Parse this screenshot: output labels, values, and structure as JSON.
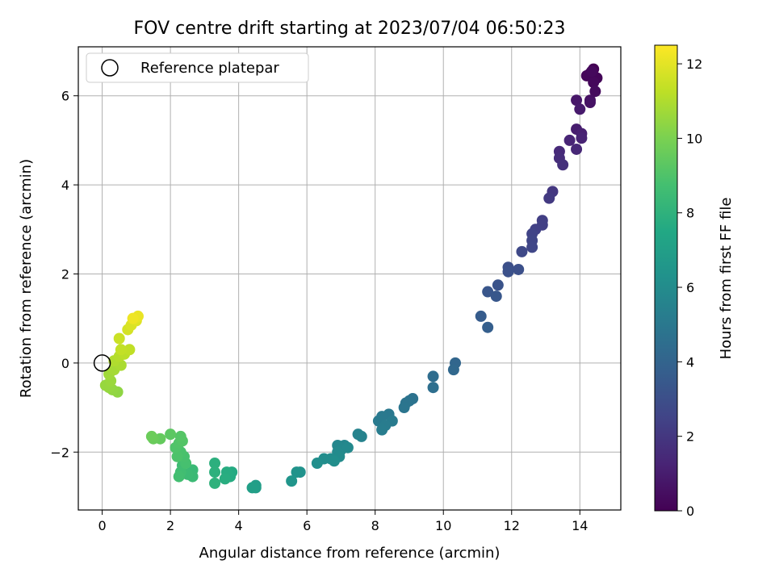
{
  "chart_data": {
    "type": "scatter",
    "title": "FOV centre drift starting at 2023/07/04 06:50:23",
    "xlabel": "Angular distance from reference (arcmin)",
    "ylabel": "Rotation from reference (arcmin)",
    "xlim": [
      -0.7,
      15.2
    ],
    "ylim": [
      -3.3,
      7.1
    ],
    "xticks": [
      0,
      2,
      4,
      6,
      8,
      10,
      12,
      14
    ],
    "yticks": [
      -2,
      0,
      2,
      4,
      6
    ],
    "grid": true,
    "legend": {
      "position": "top-left",
      "entries": [
        "Reference platepar"
      ]
    },
    "reference_point": {
      "x": 0,
      "y": 0
    },
    "colorbar": {
      "label": "Hours from first FF file",
      "range": [
        0,
        12.5
      ],
      "ticks": [
        0,
        2,
        4,
        6,
        8,
        10,
        12
      ],
      "colormap": "viridis"
    },
    "points": [
      {
        "x": 14.4,
        "y": 6.6,
        "c": 0.0
      },
      {
        "x": 14.3,
        "y": 6.5,
        "c": 0.1
      },
      {
        "x": 14.5,
        "y": 6.4,
        "c": 0.15
      },
      {
        "x": 14.2,
        "y": 6.45,
        "c": 0.2
      },
      {
        "x": 14.4,
        "y": 6.3,
        "c": 0.25
      },
      {
        "x": 14.35,
        "y": 6.55,
        "c": 0.3
      },
      {
        "x": 14.45,
        "y": 6.1,
        "c": 0.35
      },
      {
        "x": 14.3,
        "y": 5.9,
        "c": 0.5
      },
      {
        "x": 14.3,
        "y": 5.85,
        "c": 0.6
      },
      {
        "x": 13.9,
        "y": 5.9,
        "c": 0.8
      },
      {
        "x": 14.0,
        "y": 5.7,
        "c": 0.9
      },
      {
        "x": 13.9,
        "y": 5.25,
        "c": 1.0
      },
      {
        "x": 14.05,
        "y": 5.15,
        "c": 1.1
      },
      {
        "x": 14.05,
        "y": 5.05,
        "c": 1.2
      },
      {
        "x": 13.7,
        "y": 5.0,
        "c": 1.3
      },
      {
        "x": 13.9,
        "y": 4.8,
        "c": 1.4
      },
      {
        "x": 13.4,
        "y": 4.75,
        "c": 1.5
      },
      {
        "x": 13.4,
        "y": 4.6,
        "c": 1.6
      },
      {
        "x": 13.5,
        "y": 4.45,
        "c": 1.7
      },
      {
        "x": 13.2,
        "y": 3.85,
        "c": 2.0
      },
      {
        "x": 13.1,
        "y": 3.7,
        "c": 2.1
      },
      {
        "x": 12.9,
        "y": 3.2,
        "c": 2.3
      },
      {
        "x": 12.9,
        "y": 3.1,
        "c": 2.35
      },
      {
        "x": 12.7,
        "y": 3.0,
        "c": 2.4
      },
      {
        "x": 12.6,
        "y": 2.9,
        "c": 2.5
      },
      {
        "x": 12.6,
        "y": 2.75,
        "c": 2.6
      },
      {
        "x": 12.6,
        "y": 2.6,
        "c": 2.65
      },
      {
        "x": 12.3,
        "y": 2.5,
        "c": 2.75
      },
      {
        "x": 11.9,
        "y": 2.15,
        "c": 3.0
      },
      {
        "x": 12.2,
        "y": 2.1,
        "c": 3.05
      },
      {
        "x": 11.9,
        "y": 2.05,
        "c": 3.1
      },
      {
        "x": 11.6,
        "y": 1.75,
        "c": 3.2
      },
      {
        "x": 11.3,
        "y": 1.6,
        "c": 3.35
      },
      {
        "x": 11.55,
        "y": 1.5,
        "c": 3.4
      },
      {
        "x": 11.1,
        "y": 1.05,
        "c": 3.6
      },
      {
        "x": 11.3,
        "y": 0.8,
        "c": 3.75
      },
      {
        "x": 10.35,
        "y": 0.0,
        "c": 4.1
      },
      {
        "x": 10.3,
        "y": -0.15,
        "c": 4.2
      },
      {
        "x": 9.7,
        "y": -0.3,
        "c": 4.45
      },
      {
        "x": 9.7,
        "y": -0.55,
        "c": 4.55
      },
      {
        "x": 9.1,
        "y": -0.8,
        "c": 4.7
      },
      {
        "x": 9.0,
        "y": -0.85,
        "c": 4.75
      },
      {
        "x": 8.9,
        "y": -0.9,
        "c": 4.8
      },
      {
        "x": 8.85,
        "y": -1.0,
        "c": 4.85
      },
      {
        "x": 8.4,
        "y": -1.15,
        "c": 5.0
      },
      {
        "x": 8.2,
        "y": -1.2,
        "c": 5.05
      },
      {
        "x": 8.1,
        "y": -1.3,
        "c": 5.1
      },
      {
        "x": 8.5,
        "y": -1.3,
        "c": 5.15
      },
      {
        "x": 8.3,
        "y": -1.4,
        "c": 5.2
      },
      {
        "x": 8.2,
        "y": -1.5,
        "c": 5.25
      },
      {
        "x": 7.6,
        "y": -1.65,
        "c": 5.5
      },
      {
        "x": 7.5,
        "y": -1.6,
        "c": 5.55
      },
      {
        "x": 7.1,
        "y": -1.85,
        "c": 5.7
      },
      {
        "x": 6.9,
        "y": -1.85,
        "c": 5.75
      },
      {
        "x": 7.0,
        "y": -1.95,
        "c": 5.8
      },
      {
        "x": 7.2,
        "y": -1.9,
        "c": 5.85
      },
      {
        "x": 6.9,
        "y": -2.0,
        "c": 5.9
      },
      {
        "x": 6.95,
        "y": -2.1,
        "c": 5.95
      },
      {
        "x": 6.7,
        "y": -2.15,
        "c": 6.0
      },
      {
        "x": 6.5,
        "y": -2.15,
        "c": 6.05
      },
      {
        "x": 6.8,
        "y": -2.2,
        "c": 6.1
      },
      {
        "x": 6.3,
        "y": -2.25,
        "c": 6.15
      },
      {
        "x": 5.8,
        "y": -2.45,
        "c": 6.3
      },
      {
        "x": 5.7,
        "y": -2.45,
        "c": 6.35
      },
      {
        "x": 5.55,
        "y": -2.65,
        "c": 6.45
      },
      {
        "x": 4.5,
        "y": -2.75,
        "c": 6.9
      },
      {
        "x": 4.5,
        "y": -2.8,
        "c": 6.95
      },
      {
        "x": 4.4,
        "y": -2.8,
        "c": 7.0
      },
      {
        "x": 3.8,
        "y": -2.45,
        "c": 7.6
      },
      {
        "x": 3.75,
        "y": -2.55,
        "c": 7.65
      },
      {
        "x": 3.65,
        "y": -2.45,
        "c": 7.7
      },
      {
        "x": 3.6,
        "y": -2.6,
        "c": 7.75
      },
      {
        "x": 3.3,
        "y": -2.25,
        "c": 7.9
      },
      {
        "x": 3.3,
        "y": -2.45,
        "c": 7.95
      },
      {
        "x": 3.3,
        "y": -2.7,
        "c": 8.0
      },
      {
        "x": 2.65,
        "y": -2.4,
        "c": 8.4
      },
      {
        "x": 2.65,
        "y": -2.55,
        "c": 8.45
      },
      {
        "x": 2.5,
        "y": -2.5,
        "c": 8.5
      },
      {
        "x": 2.35,
        "y": -2.3,
        "c": 8.6
      },
      {
        "x": 2.3,
        "y": -2.45,
        "c": 8.65
      },
      {
        "x": 2.25,
        "y": -2.55,
        "c": 8.7
      },
      {
        "x": 2.45,
        "y": -2.25,
        "c": 8.8
      },
      {
        "x": 2.4,
        "y": -2.1,
        "c": 8.85
      },
      {
        "x": 2.3,
        "y": -2.0,
        "c": 8.9
      },
      {
        "x": 2.2,
        "y": -2.1,
        "c": 8.95
      },
      {
        "x": 2.15,
        "y": -1.9,
        "c": 9.0
      },
      {
        "x": 2.25,
        "y": -1.8,
        "c": 9.05
      },
      {
        "x": 2.35,
        "y": -1.75,
        "c": 9.1
      },
      {
        "x": 2.3,
        "y": -1.65,
        "c": 9.15
      },
      {
        "x": 2.0,
        "y": -1.6,
        "c": 9.3
      },
      {
        "x": 1.7,
        "y": -1.7,
        "c": 9.5
      },
      {
        "x": 1.5,
        "y": -1.7,
        "c": 9.6
      },
      {
        "x": 1.45,
        "y": -1.65,
        "c": 9.65
      },
      {
        "x": 0.45,
        "y": -0.65,
        "c": 10.4
      },
      {
        "x": 0.3,
        "y": -0.6,
        "c": 10.45
      },
      {
        "x": 0.2,
        "y": -0.55,
        "c": 10.5
      },
      {
        "x": 0.1,
        "y": -0.5,
        "c": 10.55
      },
      {
        "x": 0.25,
        "y": -0.4,
        "c": 10.6
      },
      {
        "x": 0.2,
        "y": -0.25,
        "c": 10.7
      },
      {
        "x": 0.35,
        "y": -0.15,
        "c": 10.8
      },
      {
        "x": 0.55,
        "y": -0.05,
        "c": 10.9
      },
      {
        "x": 0.35,
        "y": 0.05,
        "c": 11.0
      },
      {
        "x": 0.5,
        "y": 0.15,
        "c": 11.1
      },
      {
        "x": 0.65,
        "y": 0.2,
        "c": 11.2
      },
      {
        "x": 0.8,
        "y": 0.3,
        "c": 11.3
      },
      {
        "x": 0.55,
        "y": 0.3,
        "c": 11.35
      },
      {
        "x": 0.5,
        "y": 0.55,
        "c": 11.5
      },
      {
        "x": 0.75,
        "y": 0.75,
        "c": 11.7
      },
      {
        "x": 0.85,
        "y": 0.85,
        "c": 11.8
      },
      {
        "x": 1.0,
        "y": 0.95,
        "c": 11.9
      },
      {
        "x": 0.95,
        "y": 1.0,
        "c": 12.0
      },
      {
        "x": 1.05,
        "y": 1.05,
        "c": 12.1
      },
      {
        "x": 0.9,
        "y": 1.0,
        "c": 12.2
      }
    ]
  }
}
